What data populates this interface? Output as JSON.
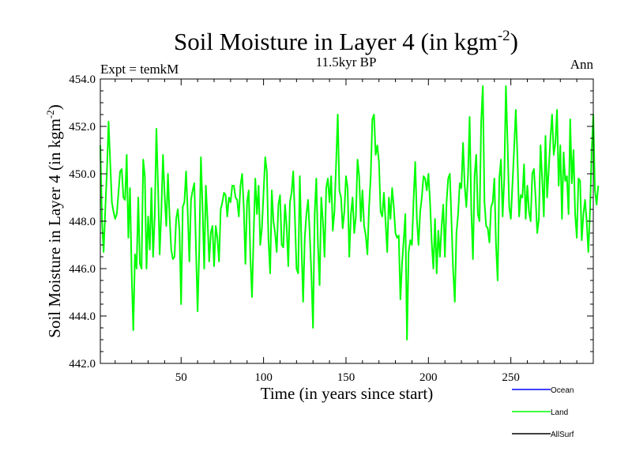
{
  "chart_data": {
    "type": "line",
    "title": "Soil Moisture in Layer 4 (in kgm",
    "title_superscript": "-2",
    "title_close": ")",
    "subtitle": "11.5kyr BP",
    "left_label": "Expt = temkM",
    "right_label": "Ann",
    "xlabel": "Time (in years since start)",
    "ylabel": "Soil Moisture in Layer 4 (in kgm",
    "ylabel_superscript": "-2",
    "ylabel_close": ")",
    "xlim": [
      1,
      300
    ],
    "ylim": [
      442.0,
      454.0
    ],
    "x_ticks": [
      50,
      100,
      150,
      200,
      250
    ],
    "x_tick_labels": [
      "50",
      "100",
      "150",
      "200",
      "250"
    ],
    "y_ticks": [
      442,
      444,
      446,
      448,
      450,
      452,
      454
    ],
    "y_tick_labels": [
      "442.0",
      "444.0",
      "446.0",
      "448.0",
      "450.0",
      "452.0",
      "454.0"
    ],
    "x_minor_step": 10,
    "y_minor_step": 0.5,
    "legend": [
      {
        "name": "Ocean",
        "color": "#0000ff"
      },
      {
        "name": "Land",
        "color": "#00ff00"
      },
      {
        "name": "AllSurf",
        "color": "#000000"
      }
    ],
    "series": [
      {
        "name": "Land",
        "color": "#00ff00",
        "x_start": 1,
        "x_step": 1,
        "values": [
          451.2,
          448.0,
          446.7,
          448.5,
          450.1,
          452.2,
          450.5,
          448.8,
          448.4,
          448.1,
          448.3,
          449.2,
          450.1,
          450.2,
          449.0,
          448.9,
          450.8,
          447.3,
          449.4,
          445.8,
          443.4,
          446.6,
          446.0,
          449.0,
          446.2,
          446.0,
          450.6,
          449.9,
          446.0,
          448.2,
          446.8,
          449.4,
          446.5,
          448.2,
          451.9,
          449.5,
          446.6,
          448.4,
          450.8,
          449.1,
          447.8,
          450.0,
          448.2,
          446.8,
          446.4,
          446.5,
          448.1,
          448.5,
          447.6,
          444.5,
          448.6,
          448.8,
          450.1,
          448.4,
          446.3,
          448.9,
          449.3,
          449.6,
          446.9,
          444.2,
          446.8,
          450.7,
          448.6,
          446.0,
          449.5,
          448.1,
          446.3,
          447.5,
          447.8,
          446.1,
          447.8,
          447.3,
          446.3,
          448.5,
          448.8,
          449.2,
          449.1,
          448.2,
          449.0,
          448.8,
          449.5,
          449.5,
          449.0,
          448.9,
          448.2,
          449.5,
          450.0,
          448.6,
          446.2,
          448.8,
          449.3,
          446.5,
          444.8,
          447.5,
          449.8,
          448.3,
          449.5,
          447.0,
          447.7,
          449.2,
          450.7,
          450.1,
          447.2,
          445.8,
          449.3,
          448.0,
          447.5,
          446.7,
          448.7,
          449.1,
          447.0,
          446.9,
          448.7,
          447.8,
          446.1,
          448.8,
          449.2,
          450.1,
          448.2,
          446.0,
          445.8,
          449.9,
          447.0,
          444.6,
          447.3,
          448.3,
          448.9,
          447.5,
          445.8,
          443.5,
          448.3,
          449.8,
          447.0,
          445.3,
          449.0,
          448.0,
          446.5,
          449.4,
          449.8,
          448.8,
          449.9,
          447.6,
          448.4,
          450.4,
          452.5,
          449.3,
          449.0,
          447.7,
          448.4,
          449.9,
          449.4,
          446.5,
          448.3,
          449.0,
          447.5,
          448.2,
          450.6,
          449.9,
          448.0,
          449.3,
          447.8,
          447.4,
          446.6,
          448.6,
          449.9,
          452.3,
          452.5,
          450.8,
          451.2,
          450.5,
          448.4,
          448.2,
          449.2,
          448.0,
          446.7,
          449.0,
          448.1,
          449.4,
          448.6,
          447.5,
          447.3,
          447.4,
          444.7,
          446.2,
          447.2,
          448.3,
          443.0,
          446.7,
          447.2,
          447.0,
          448.9,
          450.5,
          448.1,
          447.0,
          448.4,
          449.0,
          449.9,
          449.8,
          449.3,
          450.0,
          448.8,
          447.1,
          446.0,
          448.1,
          445.8,
          447.6,
          446.5,
          447.8,
          448.7,
          446.5,
          448.8,
          449.8,
          450.0,
          448.0,
          445.9,
          444.6,
          447.5,
          448.3,
          449.6,
          449.4,
          451.3,
          449.5,
          448.6,
          449.9,
          452.4,
          448.5,
          446.4,
          449.9,
          450.8,
          448.3,
          448.0,
          452.2,
          453.7,
          448.8,
          447.8,
          447.7,
          447.1,
          448.6,
          448.8,
          449.8,
          447.0,
          445.5,
          449.8,
          450.6,
          448.2,
          449.8,
          453.7,
          451.3,
          448.6,
          448.1,
          449.6,
          451.1,
          452.7,
          450.7,
          448.2,
          449.1,
          449.0,
          450.4,
          448.1,
          449.5,
          448.4,
          448.0,
          450.0,
          450.2,
          449.0,
          447.5,
          448.1,
          451.2,
          449.8,
          448.2,
          451.6,
          449.0,
          450.2,
          451.5,
          452.5,
          450.8,
          451.3,
          452.7,
          449.5,
          451.2,
          448.1,
          450.9,
          449.7,
          449.9,
          448.3,
          452.3,
          449.6,
          451.0,
          448.3,
          447.3,
          449.8,
          449.7,
          447.2,
          448.3,
          448.9,
          448.0,
          446.7,
          448.4,
          450.9,
          452.5,
          449.3,
          448.7,
          449.5
        ]
      }
    ]
  }
}
